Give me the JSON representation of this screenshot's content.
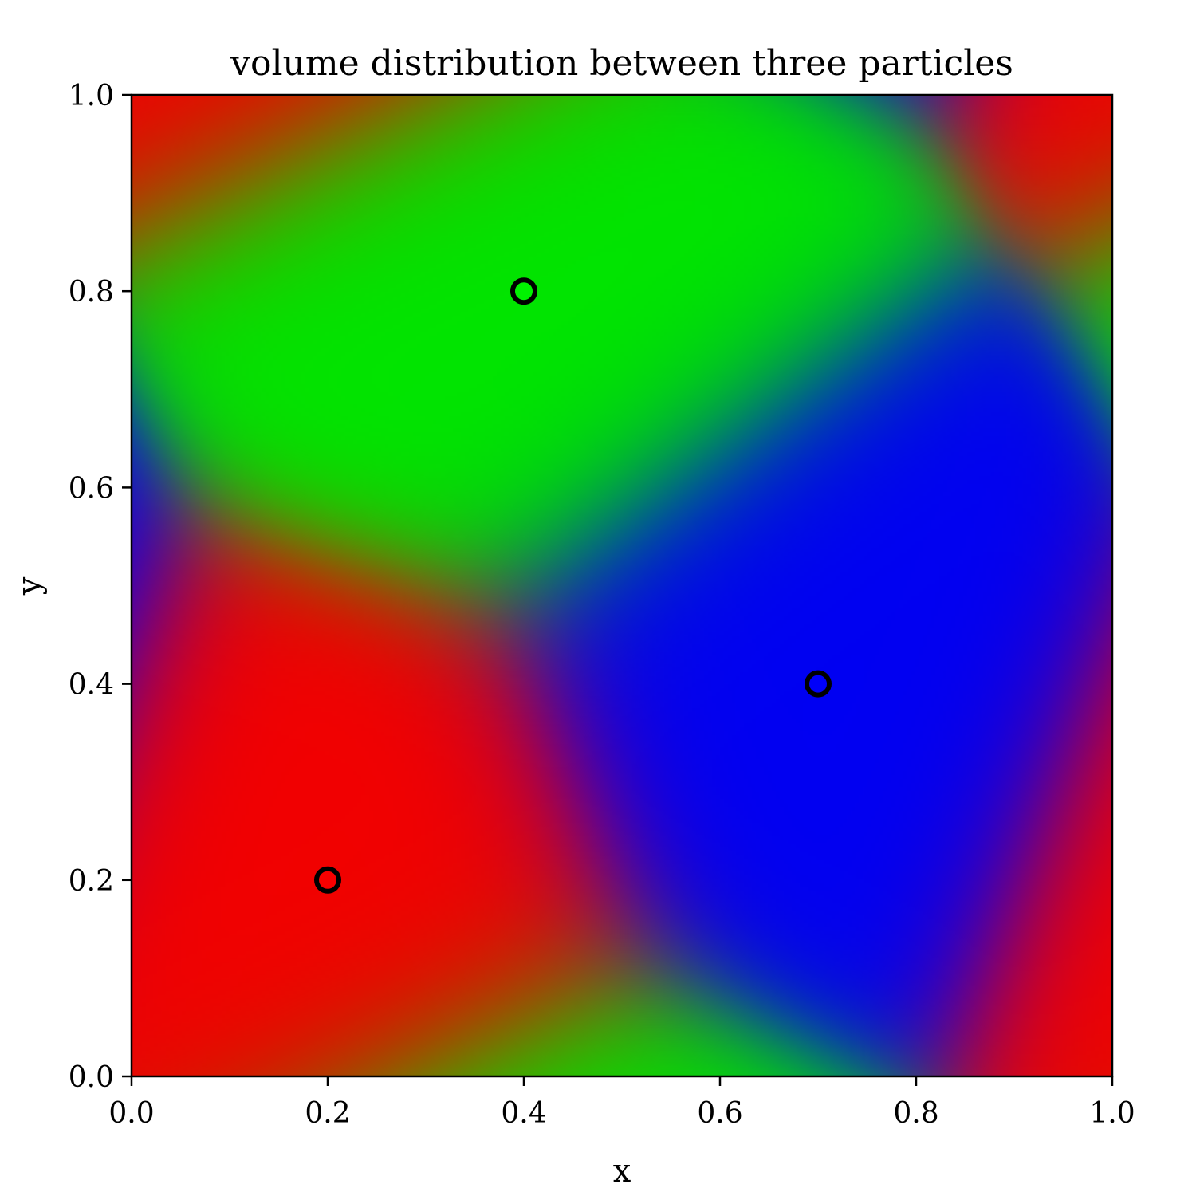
{
  "chart_data": {
    "type": "heatmap",
    "title": "volume distribution between three particles",
    "xlabel": "x",
    "ylabel": "y",
    "xlim": [
      0.0,
      1.0
    ],
    "ylim": [
      0.0,
      1.0
    ],
    "xticks": [
      "0.0",
      "0.2",
      "0.4",
      "0.6",
      "0.8",
      "1.0"
    ],
    "yticks": [
      "0.0",
      "0.2",
      "0.4",
      "0.6",
      "0.8",
      "1.0"
    ],
    "grid": false,
    "legend": "none",
    "periodic": true,
    "particles": [
      {
        "x": 0.2,
        "y": 0.2,
        "color": "#ff0000"
      },
      {
        "x": 0.4,
        "y": 0.8,
        "color": "#00ff00"
      },
      {
        "x": 0.7,
        "y": 0.4,
        "color": "#0000ff"
      }
    ],
    "marker_edge_color": "#000000"
  }
}
